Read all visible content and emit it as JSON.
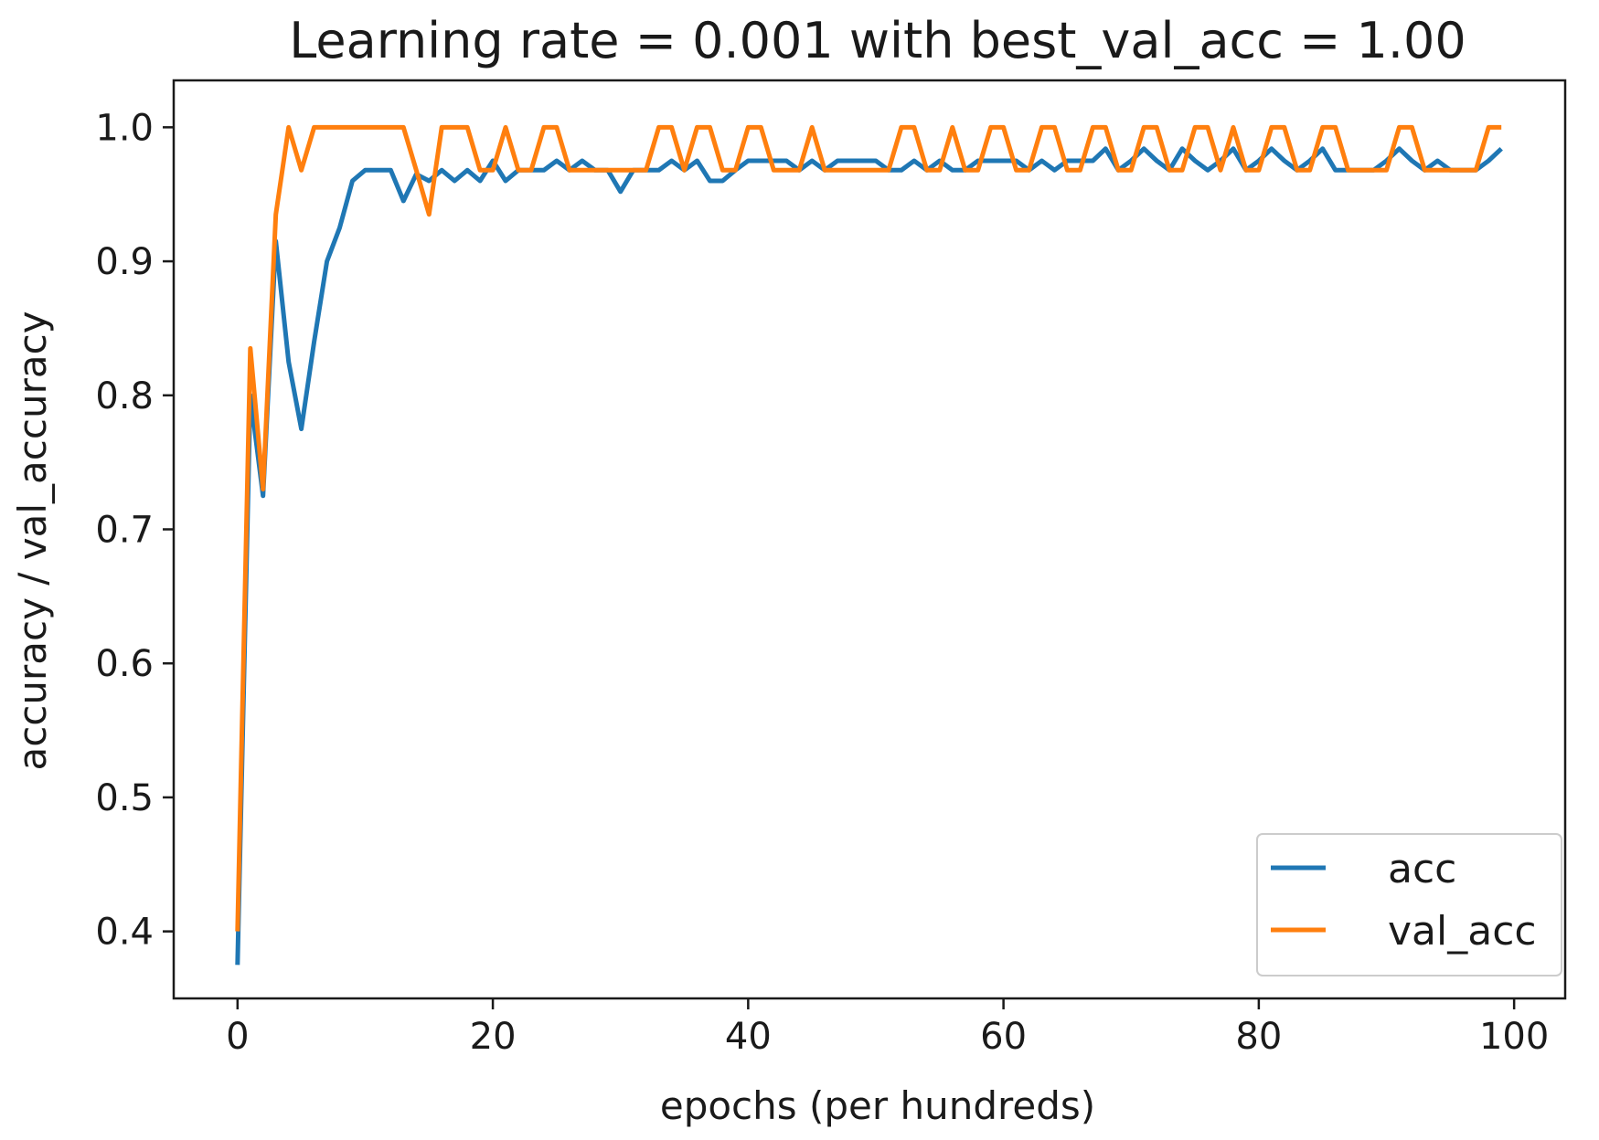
{
  "chart_data": {
    "type": "line",
    "title": "Learning rate = 0.001 with best_val_acc = 1.00",
    "xlabel": "epochs (per hundreds)",
    "ylabel": "accuracy / val_accuracy",
    "xlim": [
      -5,
      104
    ],
    "ylim": [
      0.35,
      1.035
    ],
    "xticks": [
      0,
      20,
      40,
      60,
      80,
      100
    ],
    "xtick_labels": [
      "0",
      "20",
      "40",
      "60",
      "80",
      "100"
    ],
    "yticks": [
      0.4,
      0.5,
      0.6,
      0.7,
      0.8,
      0.9,
      1.0
    ],
    "ytick_labels": [
      "0.4",
      "0.5",
      "0.6",
      "0.7",
      "0.8",
      "0.9",
      "1.0"
    ],
    "grid": false,
    "legend": "lower-right",
    "x": [
      0,
      1,
      2,
      3,
      4,
      5,
      6,
      7,
      8,
      9,
      10,
      11,
      12,
      13,
      14,
      15,
      16,
      17,
      18,
      19,
      20,
      21,
      22,
      23,
      24,
      25,
      26,
      27,
      28,
      29,
      30,
      31,
      32,
      33,
      34,
      35,
      36,
      37,
      38,
      39,
      40,
      41,
      42,
      43,
      44,
      45,
      46,
      47,
      48,
      49,
      50,
      51,
      52,
      53,
      54,
      55,
      56,
      57,
      58,
      59,
      60,
      61,
      62,
      63,
      64,
      65,
      66,
      67,
      68,
      69,
      70,
      71,
      72,
      73,
      74,
      75,
      76,
      77,
      78,
      79,
      80,
      81,
      82,
      83,
      84,
      85,
      86,
      87,
      88,
      89,
      90,
      91,
      92,
      93,
      94,
      95,
      96,
      97,
      98,
      99
    ],
    "series": [
      {
        "name": "acc",
        "color": "#1f77b4",
        "values": [
          0.375,
          0.8,
          0.725,
          0.915,
          0.825,
          0.775,
          0.84,
          0.9,
          0.925,
          0.96,
          0.968,
          0.968,
          0.968,
          0.945,
          0.965,
          0.96,
          0.968,
          0.96,
          0.968,
          0.96,
          0.975,
          0.96,
          0.968,
          0.968,
          0.968,
          0.975,
          0.968,
          0.975,
          0.968,
          0.968,
          0.952,
          0.968,
          0.968,
          0.968,
          0.975,
          0.968,
          0.975,
          0.96,
          0.96,
          0.968,
          0.975,
          0.975,
          0.975,
          0.975,
          0.968,
          0.975,
          0.968,
          0.975,
          0.975,
          0.975,
          0.975,
          0.968,
          0.968,
          0.975,
          0.968,
          0.975,
          0.968,
          0.968,
          0.975,
          0.975,
          0.975,
          0.975,
          0.968,
          0.975,
          0.968,
          0.975,
          0.975,
          0.975,
          0.984,
          0.968,
          0.975,
          0.984,
          0.975,
          0.968,
          0.984,
          0.975,
          0.968,
          0.975,
          0.984,
          0.968,
          0.975,
          0.984,
          0.975,
          0.968,
          0.975,
          0.984,
          0.968,
          0.968,
          0.968,
          0.968,
          0.975,
          0.984,
          0.975,
          0.968,
          0.975,
          0.968,
          0.968,
          0.968,
          0.975,
          0.984
        ]
      },
      {
        "name": "val_acc",
        "color": "#ff7f0e",
        "values": [
          0.4,
          0.835,
          0.73,
          0.935,
          1.0,
          0.968,
          1.0,
          1.0,
          1.0,
          1.0,
          1.0,
          1.0,
          1.0,
          1.0,
          0.968,
          0.935,
          1.0,
          1.0,
          1.0,
          0.968,
          0.968,
          1.0,
          0.968,
          0.968,
          1.0,
          1.0,
          0.968,
          0.968,
          0.968,
          0.968,
          0.968,
          0.968,
          0.968,
          1.0,
          1.0,
          0.968,
          1.0,
          1.0,
          0.968,
          0.968,
          1.0,
          1.0,
          0.968,
          0.968,
          0.968,
          1.0,
          0.968,
          0.968,
          0.968,
          0.968,
          0.968,
          0.968,
          1.0,
          1.0,
          0.968,
          0.968,
          1.0,
          0.968,
          0.968,
          1.0,
          1.0,
          0.968,
          0.968,
          1.0,
          1.0,
          0.968,
          0.968,
          1.0,
          1.0,
          0.968,
          0.968,
          1.0,
          1.0,
          0.968,
          0.968,
          1.0,
          1.0,
          0.968,
          1.0,
          0.968,
          0.968,
          1.0,
          1.0,
          0.968,
          0.968,
          1.0,
          1.0,
          0.968,
          0.968,
          0.968,
          0.968,
          1.0,
          1.0,
          0.968,
          0.968,
          0.968,
          0.968,
          0.968,
          1.0,
          1.0
        ]
      }
    ]
  }
}
